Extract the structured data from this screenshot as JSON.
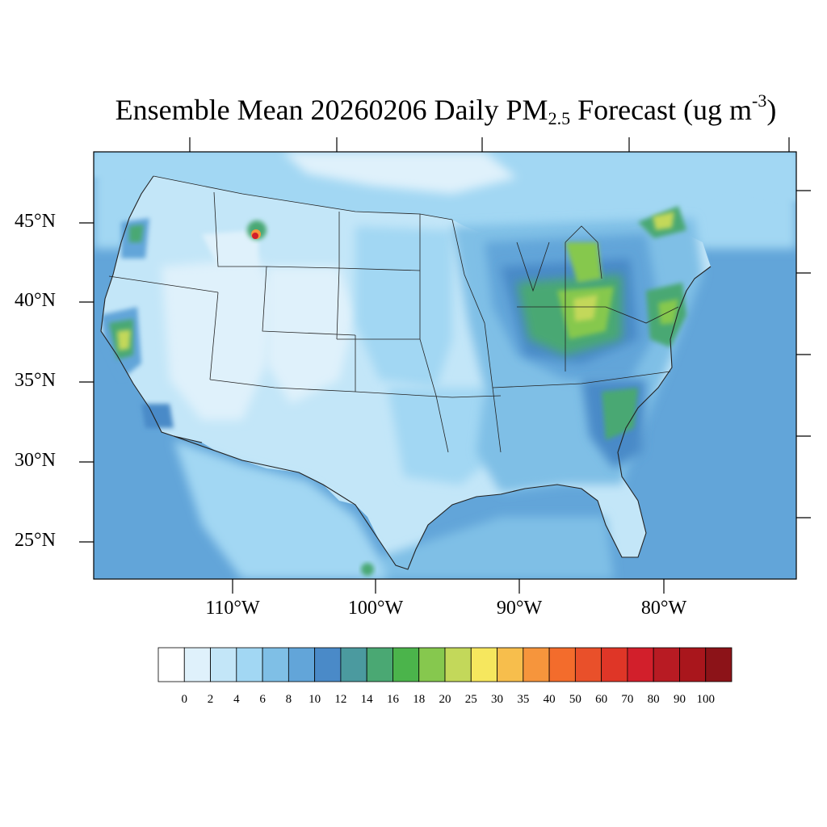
{
  "title": {
    "main": "Ensemble Mean 20260206 Daily PM",
    "sub": "2.5",
    "after_sub": " Forecast (ug m",
    "sup": "-3",
    "close": ")"
  },
  "lat_labels": [
    "45°N",
    "40°N",
    "35°N",
    "30°N",
    "25°N"
  ],
  "lon_labels": [
    "110°W",
    "100°W",
    "90°W",
    "80°W"
  ],
  "legend": {
    "labels": [
      "0",
      "2",
      "4",
      "6",
      "8",
      "10",
      "12",
      "14",
      "16",
      "18",
      "20",
      "25",
      "30",
      "35",
      "40",
      "50",
      "60",
      "70",
      "80",
      "90",
      "100"
    ],
    "colors": [
      "#ffffff",
      "#dff1fb",
      "#c3e6f8",
      "#a2d7f3",
      "#7fbfe6",
      "#62a5d9",
      "#4a8ac8",
      "#4b9a9f",
      "#4aa873",
      "#4bb44b",
      "#86c84e",
      "#c3d85a",
      "#f6e75e",
      "#f7be4c",
      "#f6953c",
      "#f36c2c",
      "#e9502a",
      "#df3627",
      "#d21f2b",
      "#b81b23",
      "#a9161c",
      "#8c1318"
    ]
  },
  "map": {
    "background_color": "#62a5d9",
    "hotspots_color_scale": "pm25"
  }
}
